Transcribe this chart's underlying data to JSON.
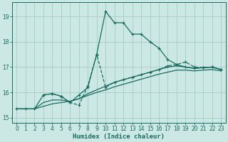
{
  "xlabel": "Humidex (Indice chaleur)",
  "bg_color": "#cce8e4",
  "grid_color": "#aad0ca",
  "line_color": "#1a6b60",
  "xlim": [
    -0.5,
    23.5
  ],
  "ylim": [
    14.8,
    19.55
  ],
  "yticks": [
    15,
    16,
    17,
    18,
    19
  ],
  "xticks": [
    0,
    1,
    2,
    3,
    4,
    5,
    6,
    7,
    8,
    9,
    10,
    11,
    12,
    13,
    14,
    15,
    16,
    17,
    18,
    19,
    20,
    21,
    22,
    23
  ],
  "line1_x": [
    0,
    1,
    2,
    3,
    4,
    5,
    6,
    7,
    8,
    9,
    10,
    11,
    12,
    13,
    14,
    15,
    16,
    17,
    18,
    19,
    20,
    21,
    22,
    23
  ],
  "line1_y": [
    15.35,
    15.35,
    15.35,
    15.45,
    15.55,
    15.6,
    15.65,
    15.75,
    15.88,
    16.0,
    16.1,
    16.22,
    16.32,
    16.42,
    16.52,
    16.62,
    16.72,
    16.8,
    16.88,
    16.88,
    16.85,
    16.88,
    16.9,
    16.85
  ],
  "line2_x": [
    0,
    1,
    2,
    3,
    4,
    5,
    6,
    7,
    8,
    9,
    10,
    11,
    12,
    13,
    14,
    15,
    16,
    17,
    18,
    19,
    20,
    21,
    22,
    23
  ],
  "line2_y": [
    15.35,
    15.35,
    15.35,
    15.6,
    15.7,
    15.7,
    15.65,
    15.75,
    15.95,
    16.1,
    16.25,
    16.4,
    16.5,
    16.6,
    16.7,
    16.8,
    16.9,
    17.0,
    17.05,
    17.0,
    16.95,
    16.98,
    17.0,
    16.9
  ],
  "line3_x": [
    0,
    1,
    2,
    3,
    4,
    5,
    6,
    7,
    8,
    9,
    10,
    11,
    12,
    13,
    14,
    15,
    16,
    17,
    18,
    19,
    20,
    21,
    22,
    23
  ],
  "line3_y": [
    15.35,
    15.35,
    15.35,
    15.9,
    15.95,
    15.85,
    15.6,
    15.9,
    16.2,
    17.5,
    19.2,
    18.75,
    18.75,
    18.3,
    18.3,
    18.0,
    17.75,
    17.3,
    17.1,
    17.0,
    16.95,
    16.98,
    17.0,
    16.9
  ],
  "line4_x": [
    3,
    4,
    5,
    6,
    7,
    8,
    9,
    10,
    11,
    12,
    13,
    14,
    15,
    16,
    17,
    18,
    19,
    20,
    21,
    22,
    23
  ],
  "line4_y": [
    15.9,
    15.95,
    15.85,
    15.6,
    15.5,
    16.25,
    17.5,
    16.2,
    16.4,
    16.5,
    16.6,
    16.7,
    16.8,
    16.9,
    17.05,
    17.1,
    17.2,
    17.0,
    16.98,
    17.0,
    16.9
  ]
}
